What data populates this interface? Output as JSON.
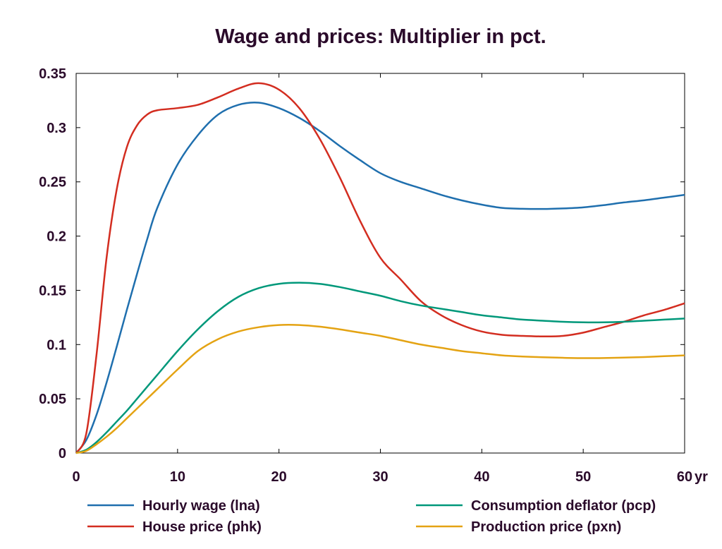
{
  "chart_data": {
    "type": "line",
    "title": "Wage and prices: Multiplier in pct.",
    "x_unit_label": "yr",
    "xlim": [
      0,
      60
    ],
    "ylim": [
      0,
      0.35
    ],
    "xticks": [
      0,
      10,
      20,
      30,
      40,
      50,
      60
    ],
    "yticks": [
      0,
      0.05,
      0.1,
      0.15,
      0.2,
      0.25,
      0.3,
      0.35
    ],
    "ytick_labels": [
      "0",
      "0.05",
      "0.1",
      "0.15",
      "0.2",
      "0.25",
      "0.3",
      "0.35"
    ],
    "grid": false,
    "legend_position": "bottom",
    "x": [
      0,
      1,
      2,
      3,
      4,
      5,
      6,
      7,
      8,
      10,
      12,
      14,
      16,
      18,
      20,
      22,
      24,
      26,
      28,
      30,
      32,
      34,
      36,
      38,
      40,
      42,
      44,
      46,
      48,
      50,
      52,
      54,
      56,
      58,
      60
    ],
    "series": [
      {
        "name": "Hourly wage (lna)",
        "color": "#1f6fae",
        "values": [
          0,
          0.012,
          0.035,
          0.065,
          0.098,
          0.132,
          0.165,
          0.197,
          0.226,
          0.266,
          0.293,
          0.312,
          0.321,
          0.323,
          0.318,
          0.309,
          0.297,
          0.283,
          0.27,
          0.258,
          0.25,
          0.244,
          0.238,
          0.233,
          0.229,
          0.226,
          0.2252,
          0.225,
          0.2255,
          0.2265,
          0.2285,
          0.231,
          0.233,
          0.2355,
          0.238
        ]
      },
      {
        "name": "House price (phk)",
        "color": "#d32d20",
        "values": [
          0,
          0.018,
          0.09,
          0.18,
          0.243,
          0.282,
          0.302,
          0.312,
          0.316,
          0.318,
          0.321,
          0.328,
          0.336,
          0.341,
          0.335,
          0.318,
          0.29,
          0.254,
          0.214,
          0.18,
          0.16,
          0.14,
          0.127,
          0.118,
          0.112,
          0.109,
          0.108,
          0.1075,
          0.108,
          0.111,
          0.116,
          0.121,
          0.127,
          0.132,
          0.138
        ]
      },
      {
        "name": "Consumption deflator (pcp)",
        "color": "#00987a",
        "values": [
          0,
          0.003,
          0.01,
          0.019,
          0.029,
          0.039,
          0.05,
          0.061,
          0.072,
          0.094,
          0.114,
          0.131,
          0.144,
          0.152,
          0.156,
          0.157,
          0.156,
          0.153,
          0.149,
          0.145,
          0.14,
          0.136,
          0.133,
          0.13,
          0.127,
          0.125,
          0.123,
          0.122,
          0.121,
          0.1205,
          0.1205,
          0.121,
          0.122,
          0.123,
          0.124
        ]
      },
      {
        "name": "Production price (pxn)",
        "color": "#e4a313",
        "values": [
          0,
          0.002,
          0.008,
          0.015,
          0.023,
          0.032,
          0.041,
          0.05,
          0.059,
          0.077,
          0.094,
          0.105,
          0.112,
          0.116,
          0.118,
          0.118,
          0.1165,
          0.114,
          0.111,
          0.108,
          0.104,
          0.1,
          0.097,
          0.094,
          0.092,
          0.09,
          0.089,
          0.0883,
          0.0878,
          0.0875,
          0.0876,
          0.088,
          0.0885,
          0.0893,
          0.09
        ]
      }
    ]
  }
}
